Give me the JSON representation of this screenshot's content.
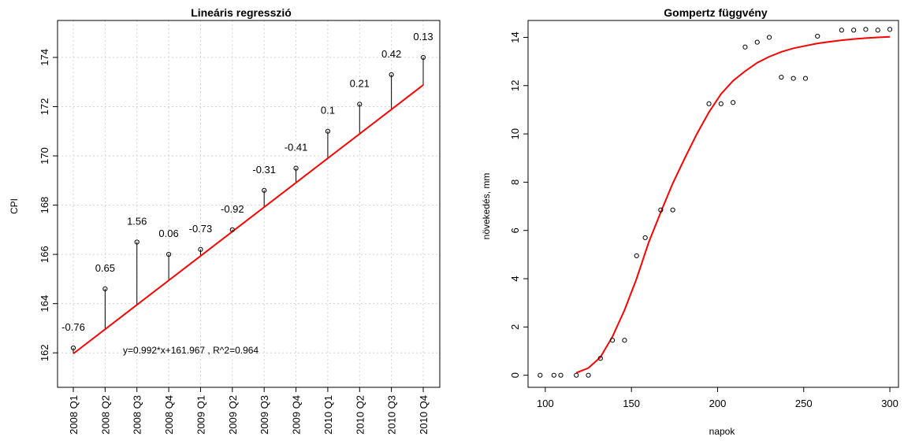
{
  "chart_data": [
    {
      "type": "scatter",
      "title": "Lineáris regresszió",
      "xlabel": "",
      "ylabel": "CPI",
      "categories": [
        "2008 Q1",
        "2008 Q2",
        "2008 Q3",
        "2008 Q4",
        "2009 Q1",
        "2009 Q2",
        "2009 Q3",
        "2009 Q4",
        "2010 Q1",
        "2010 Q2",
        "2010 Q3",
        "2010 Q4"
      ],
      "observed": [
        162.2,
        164.6,
        166.5,
        166.0,
        166.2,
        167.0,
        168.6,
        169.5,
        171.0,
        172.1,
        173.3,
        174.0
      ],
      "residual_labels": [
        "-0.76",
        "0.65",
        "1.56",
        "0.06",
        "-0.73",
        "-0.92",
        "-0.31",
        "-0.41",
        "0.1",
        "0.21",
        "0.42",
        "0.13"
      ],
      "fit": {
        "slope": 0.992,
        "intercept": 161.967,
        "color": "#ff0000"
      },
      "equation": "y=0.992*x+161.967 , R^2=0.964",
      "ylim": [
        160.6,
        175.5
      ],
      "yticks": [
        "162",
        "164",
        "166",
        "168",
        "170",
        "172",
        "174"
      ],
      "grid": true
    },
    {
      "type": "scatter",
      "title": "Gompertz függvény",
      "xlabel": "napok",
      "ylabel": "növekedés, mm",
      "x": [
        97,
        105,
        109,
        118,
        125,
        132,
        139,
        146,
        153,
        158,
        167,
        174,
        195,
        202,
        209,
        216,
        223,
        230,
        237,
        244,
        251,
        258,
        272,
        279,
        286,
        293,
        300
      ],
      "y": [
        0.0,
        0.0,
        0.0,
        0.0,
        0.0,
        0.7,
        1.45,
        1.45,
        4.95,
        5.7,
        6.85,
        6.85,
        11.25,
        11.25,
        11.3,
        13.6,
        13.8,
        14.0,
        12.35,
        12.3,
        12.3,
        14.05,
        14.3,
        14.3,
        14.33,
        14.3,
        14.33
      ],
      "curve": {
        "x": [
          118,
          125,
          132,
          139,
          146,
          153,
          160,
          167,
          174,
          181,
          188,
          195,
          202,
          209,
          216,
          223,
          230,
          237,
          244,
          251,
          258,
          265,
          272,
          279,
          286,
          293,
          300
        ],
        "y": [
          0.1,
          0.3,
          0.75,
          1.6,
          2.7,
          4.0,
          5.5,
          6.75,
          7.95,
          9.0,
          10.0,
          10.9,
          11.65,
          12.2,
          12.6,
          12.95,
          13.2,
          13.4,
          13.55,
          13.65,
          13.75,
          13.82,
          13.88,
          13.93,
          13.97,
          14.0,
          14.02
        ],
        "color": "#ff0000"
      },
      "xlim": [
        90,
        305
      ],
      "ylim": [
        -0.5,
        14.7
      ],
      "xticks": [
        "100",
        "150",
        "200",
        "250",
        "300"
      ],
      "yticks": [
        "0",
        "2",
        "4",
        "6",
        "8",
        "10",
        "12",
        "14"
      ]
    }
  ]
}
